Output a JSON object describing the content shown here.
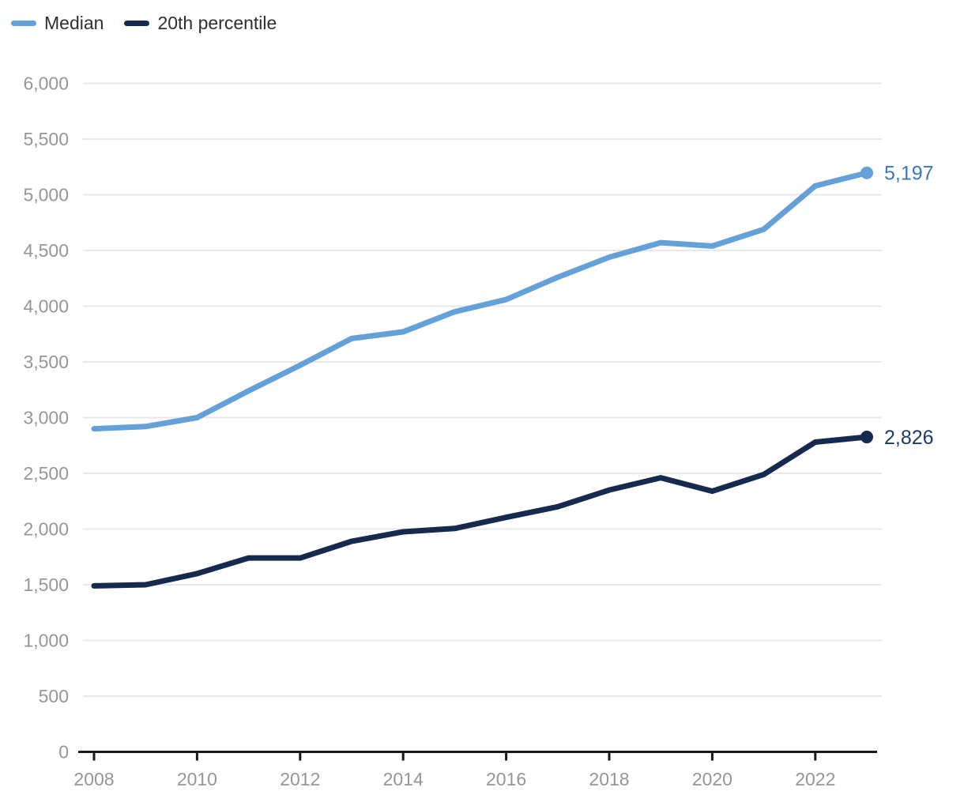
{
  "legend": {
    "items": [
      {
        "id": "median",
        "label": "Median",
        "color": "#64a1d8"
      },
      {
        "id": "p20",
        "label": "20th percentile",
        "color": "#16294e"
      }
    ]
  },
  "chart_data": {
    "type": "line",
    "x": [
      2008,
      2009,
      2010,
      2011,
      2012,
      2013,
      2014,
      2015,
      2016,
      2017,
      2018,
      2019,
      2020,
      2021,
      2022,
      2023
    ],
    "series": [
      {
        "name": "Median",
        "id": "median",
        "color": "#64a1d8",
        "values": [
          2900,
          2920,
          3000,
          3240,
          3470,
          3710,
          3770,
          3950,
          4060,
          4260,
          4440,
          4570,
          4540,
          4690,
          5080,
          5197
        ],
        "end_label": "5,197",
        "end_label_color": "#3c78be"
      },
      {
        "name": "20th percentile",
        "id": "p20",
        "color": "#16294e",
        "values": [
          1490,
          1500,
          1600,
          1740,
          1740,
          1890,
          1975,
          2005,
          2105,
          2200,
          2350,
          2460,
          2340,
          2490,
          2780,
          2826
        ],
        "end_label": "2,826",
        "end_label_color": "#1c3b6b"
      }
    ],
    "title": "",
    "xlabel": "",
    "ylabel": "",
    "xlim": [
      2008,
      2023
    ],
    "ylim": [
      0,
      6000
    ],
    "y_ticks": [
      0,
      500,
      1000,
      1500,
      2000,
      2500,
      3000,
      3500,
      4000,
      4500,
      5000,
      5500,
      6000
    ],
    "y_tick_labels": [
      "0",
      "500",
      "1,000",
      "1,500",
      "2,000",
      "2,500",
      "3,000",
      "3,500",
      "4,000",
      "4,500",
      "5,000",
      "5,500",
      "6,000"
    ],
    "x_ticks": [
      2008,
      2010,
      2012,
      2014,
      2016,
      2018,
      2020,
      2022
    ],
    "x_tick_labels": [
      "2008",
      "2010",
      "2012",
      "2014",
      "2016",
      "2018",
      "2020",
      "2022"
    ],
    "grid": true,
    "legend_position": "top-left",
    "styles": {
      "gridline_color": "#e8e8e8",
      "axis_line_color": "#1a1a1a",
      "tick_label_color": "#969696",
      "line_width": 7,
      "marker_radius": 8
    }
  }
}
